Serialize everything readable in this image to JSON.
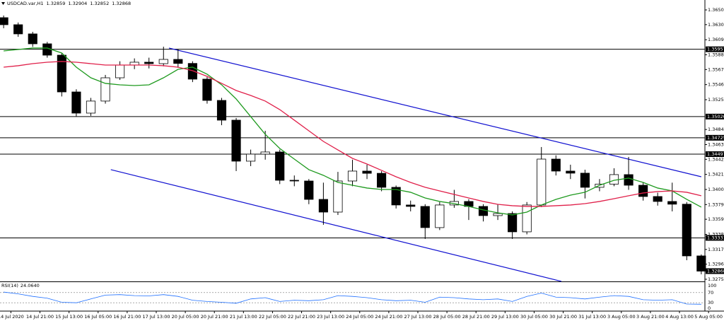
{
  "chart_data": {
    "type": "candlestick",
    "title": "USDCAD.var,H1",
    "header_ohlc": [
      1.32859,
      1.32904,
      1.32852,
      1.32868
    ],
    "x": [
      -4,
      4,
      12,
      20,
      28,
      36,
      44,
      52,
      60,
      68,
      76,
      84,
      92,
      100,
      108,
      116,
      124,
      132,
      140,
      148,
      156,
      164,
      172,
      180,
      188,
      196,
      204,
      212,
      220,
      228,
      236,
      244,
      252,
      260,
      268,
      276,
      284,
      292,
      300,
      308,
      316,
      324,
      332,
      340,
      348,
      356,
      364,
      372,
      380
    ],
    "open": [
      1.36397,
      1.36299,
      1.36171,
      1.36033,
      1.35875,
      1.35363,
      1.35068,
      1.35236,
      1.3556,
      1.35737,
      1.35777,
      1.35757,
      1.35816,
      1.3576,
      1.35541,
      1.35245,
      1.3497,
      1.34399,
      1.34497,
      1.34527,
      1.34133,
      1.34123,
      1.33867,
      1.3369,
      1.34123,
      1.34261,
      1.3423,
      1.34035,
      1.33789,
      1.33769,
      1.33474,
      1.33789,
      1.33838,
      1.33769,
      1.33641,
      1.3367,
      1.33415,
      1.33789,
      1.34428,
      1.34261,
      1.34232,
      1.34035,
      1.3408,
      1.34212,
      1.34064,
      1.33907,
      1.33838,
      1.338,
      1.3308
    ],
    "high": [
      1.36427,
      1.3633,
      1.362,
      1.3606,
      1.359,
      1.354,
      1.3528,
      1.356,
      1.3579,
      1.3583,
      1.3584,
      1.35993,
      1.3596,
      1.3579,
      1.3557,
      1.3528,
      1.35,
      1.3456,
      1.34822,
      1.3456,
      1.342,
      1.3415,
      1.341,
      1.3425,
      1.3442,
      1.3435,
      1.3426,
      1.3406,
      1.3385,
      1.338,
      1.3383,
      1.34,
      1.3387,
      1.338,
      1.338,
      1.337,
      1.3383,
      1.34596,
      1.3448,
      1.3435,
      1.3428,
      1.3415,
      1.343,
      1.34458,
      1.341,
      1.3396,
      1.341,
      1.3383,
      1.331
    ],
    "low": [
      1.3625,
      1.3613,
      1.3599,
      1.3584,
      1.353,
      1.35019,
      1.3503,
      1.352,
      1.3553,
      1.3568,
      1.3569,
      1.3572,
      1.357,
      1.355,
      1.352,
      1.349,
      1.34261,
      1.3433,
      1.3442,
      1.3408,
      1.3405,
      1.338,
      1.33513,
      1.3365,
      1.3405,
      1.3415,
      1.3398,
      1.3374,
      1.337,
      1.33316,
      1.3344,
      1.3375,
      1.3358,
      1.3356,
      1.3358,
      1.33316,
      1.3338,
      1.3376,
      1.342,
      1.3415,
      1.3388,
      1.3398,
      1.3405,
      1.34,
      1.3385,
      1.3378,
      1.337,
      1.3302,
      1.32824
    ],
    "close": [
      1.36299,
      1.36171,
      1.36033,
      1.35875,
      1.35363,
      1.35068,
      1.35236,
      1.3556,
      1.35737,
      1.35777,
      1.35757,
      1.35816,
      1.3576,
      1.35541,
      1.35245,
      1.3497,
      1.34399,
      1.34497,
      1.34527,
      1.34133,
      1.34123,
      1.33867,
      1.3369,
      1.34123,
      1.34261,
      1.3423,
      1.34035,
      1.33789,
      1.33769,
      1.33474,
      1.33789,
      1.33838,
      1.33769,
      1.33641,
      1.3367,
      1.33415,
      1.33789,
      1.34428,
      1.34261,
      1.34232,
      1.34035,
      1.3408,
      1.34212,
      1.34064,
      1.33907,
      1.33838,
      1.338,
      1.3308,
      1.32868
    ],
    "moving_averages": [
      {
        "color": "#1f9a1f",
        "values": [
          1.35934,
          1.35954,
          1.35974,
          1.35974,
          1.35905,
          1.35708,
          1.3556,
          1.35482,
          1.35462,
          1.35452,
          1.35462,
          1.3556,
          1.35678,
          1.35708,
          1.3561,
          1.35462,
          1.35265,
          1.35019,
          1.34773,
          1.34576,
          1.34428,
          1.34281,
          1.34202,
          1.34103,
          1.34064,
          1.34025,
          1.34005,
          1.34005,
          1.33966,
          1.33887,
          1.33838,
          1.33808,
          1.33769,
          1.3372,
          1.3368,
          1.33651,
          1.3369,
          1.33789,
          1.33867,
          1.33926,
          1.33966,
          1.34064,
          1.34133,
          1.34163,
          1.34103,
          1.34025,
          1.33985,
          1.33867,
          1.33759
        ]
      },
      {
        "color": "#e0204a",
        "values": [
          1.35708,
          1.35728,
          1.35757,
          1.35777,
          1.35787,
          1.35777,
          1.35757,
          1.35737,
          1.35737,
          1.35737,
          1.35737,
          1.35728,
          1.35708,
          1.35659,
          1.3558,
          1.35482,
          1.35383,
          1.35314,
          1.35236,
          1.35117,
          1.3497,
          1.34822,
          1.34674,
          1.34556,
          1.34438,
          1.34359,
          1.34271,
          1.34182,
          1.34103,
          1.34035,
          1.33985,
          1.33936,
          1.33887,
          1.33838,
          1.33798,
          1.33779,
          1.33769,
          1.33769,
          1.33779,
          1.33789,
          1.33808,
          1.33838,
          1.33877,
          1.33917,
          1.33956,
          1.33976,
          1.33985,
          1.33966,
          1.33917
        ]
      }
    ],
    "trendlines": [
      {
        "color": "#1010d0",
        "x": [
          87,
          380
        ],
        "values": [
          1.35974,
          1.34182
        ]
      },
      {
        "color": "#1010d0",
        "x": [
          55,
          303
        ],
        "values": [
          1.34281,
          1.32726
        ]
      }
    ],
    "levels": [
      1.35957,
      {
        "value": 1.3502,
        "label": "1.35020"
      },
      1.34725,
      1.34497,
      1.33331
    ],
    "last_price": 1.32868,
    "xlim": [
      -6,
      382
    ],
    "ylim": [
      1.32725,
      1.36643
    ],
    "yticks": [
      1.36505,
      {
        "value": 1.363,
        "label": "1.36300"
      },
      {
        "value": 1.3609,
        "label": "1.36090"
      },
      {
        "value": 1.3588,
        "label": "1.35880"
      },
      1.35675,
      1.35465,
      1.35255,
      {
        "value": 1.3484,
        "label": "1.34840"
      },
      {
        "value": 1.3463,
        "label": "1.34630"
      },
      1.34425,
      1.34215,
      1.34005,
      1.33795,
      {
        "value": 1.3359,
        "label": "1.33590"
      },
      {
        "value": 1.3338,
        "label": "1.33380"
      },
      {
        "value": 1.3317,
        "label": "1.33170"
      },
      1.32965,
      1.32755
    ],
    "xticks": [
      {
        "value": 0,
        "label": "14 Jul 2020"
      },
      {
        "value": 16,
        "label": "14 Jul 21:00"
      },
      {
        "value": 32,
        "label": "15 Jul 13:00"
      },
      {
        "value": 48,
        "label": "16 Jul 05:00"
      },
      {
        "value": 64,
        "label": "16 Jul 21:00"
      },
      {
        "value": 80,
        "label": "17 Jul 13:00"
      },
      {
        "value": 96,
        "label": "20 Jul 05:00"
      },
      {
        "value": 112,
        "label": "20 Jul 21:00"
      },
      {
        "value": 128,
        "label": "21 Jul 13:00"
      },
      {
        "value": 144,
        "label": "22 Jul 05:00"
      },
      {
        "value": 160,
        "label": "22 Jul 21:00"
      },
      {
        "value": 176,
        "label": "23 Jul 13:00"
      },
      {
        "value": 192,
        "label": "24 Jul 05:00"
      },
      {
        "value": 208,
        "label": "24 Jul 21:00"
      },
      {
        "value": 224,
        "label": "27 Jul 13:00"
      },
      {
        "value": 240,
        "label": "28 Jul 05:00"
      },
      {
        "value": 256,
        "label": "28 Jul 21:00"
      },
      {
        "value": 272,
        "label": "29 Jul 13:00"
      },
      {
        "value": 288,
        "label": "30 Jul 05:00"
      },
      {
        "value": 304,
        "label": "30 Jul 21:00"
      },
      {
        "value": 320,
        "label": "31 Jul 13:00"
      },
      {
        "value": 336,
        "label": "3 Aug 05:00"
      },
      {
        "value": 352,
        "label": "3 Aug 21:00"
      },
      {
        "value": 368,
        "label": "4 Aug 13:00"
      },
      {
        "value": 384,
        "label": "5 Aug 05:00"
      }
    ],
    "rsi": {
      "name": "RSI(14)",
      "current": {
        "value": 24.064,
        "label": "24.0640"
      },
      "color": "#1e6fff",
      "ylim": [
        0,
        100
      ],
      "yticks": [
        0,
        30,
        70,
        100
      ],
      "values": [
        72,
        65,
        55,
        48,
        32,
        30,
        45,
        60,
        62,
        58,
        57,
        62,
        55,
        40,
        35,
        32,
        28,
        45,
        50,
        35,
        40,
        38,
        42,
        58,
        55,
        50,
        42,
        38,
        40,
        32,
        52,
        50,
        45,
        42,
        45,
        35,
        55,
        68,
        52,
        50,
        45,
        52,
        58,
        55,
        42,
        40,
        42,
        25,
        24.064
      ]
    }
  }
}
